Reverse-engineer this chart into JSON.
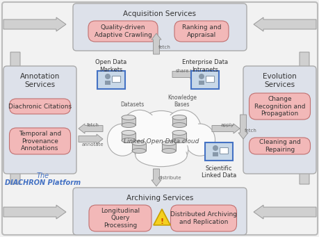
{
  "bg_color": "#f2f2f2",
  "box_bg": "#dde1ea",
  "pill_bg": "#f2b8b8",
  "pill_ec": "#c07070",
  "icon_bg": "#c8d8e8",
  "icon_ec": "#4472c4",
  "arrow_fc": "#d0d0d0",
  "arrow_ec": "#999999",
  "cloud_fc": "#fafafa",
  "cloud_ec": "#aaaaaa",
  "outer_ec": "#bbbbbb",
  "text_dark": "#333333",
  "text_blue": "#4472c4",
  "text_label": "#666666",
  "acq_title": "Acquisition Services",
  "acq_pill1": "Quality-driven\nAdaptive Crawling",
  "acq_pill2": "Ranking and\nAppraisal",
  "ann_title": "Annotation\nServices",
  "ann_pill1": "Diachronic Citations",
  "ann_pill2": "Temporal and\nProvenance\nAnnotations",
  "evo_title": "Evolution\nServices",
  "evo_pill1": "Change\nRecognition and\nPropagation",
  "evo_pill2": "Cleaning and\nRepairing",
  "arch_title": "Archiving Services",
  "arch_pill1": "Longitudinal\nQuery\nProcessing",
  "arch_pill2": "Distributed Archiving\nand Replication",
  "cloud_text": "Linked Open Data cloud",
  "platform_line1": "The",
  "platform_line2": "DIACHRON Platform",
  "odm_text": "Open Data\nMarkets",
  "edi_text": "Enterprise Data\nIntranets",
  "sld_text": "Scientific\nLinked Data",
  "datasets_text": "Datasets",
  "kb_text": "Knowledge\nBases",
  "lbl_fetch1": "fetch",
  "lbl_share": "share",
  "lbl_fetch2": "fetch",
  "lbl_annotate": "annotate",
  "lbl_apply": "apply",
  "lbl_fetch3": "fetch",
  "lbl_distribute": "distribute"
}
